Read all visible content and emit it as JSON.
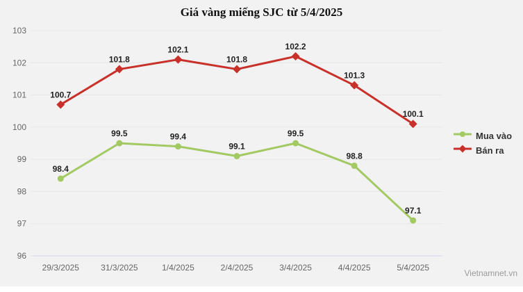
{
  "title": "Giá vàng miếng SJC từ 5/4/2025",
  "watermark": "Vietnamnet.vn",
  "chart_data": {
    "type": "line",
    "categories": [
      "29/3/2025",
      "31/3/2025",
      "1/4/2025",
      "2/4/2025",
      "3/4/2025",
      "4/4/2025",
      "5/4/2025"
    ],
    "series": [
      {
        "name": "Mua vào",
        "color": "#a3c962",
        "marker": "circle",
        "values": [
          98.4,
          99.5,
          99.4,
          99.1,
          99.5,
          98.8,
          97.1
        ]
      },
      {
        "name": "Bán ra",
        "color": "#c8302a",
        "marker": "diamond",
        "values": [
          100.7,
          101.8,
          102.1,
          101.8,
          102.2,
          101.3,
          100.1
        ]
      }
    ],
    "title": "Giá vàng miếng SJC từ 5/4/2025",
    "xlabel": "",
    "ylabel": "",
    "ylim": [
      96,
      103
    ],
    "yticks": [
      96,
      97,
      98,
      99,
      100,
      101,
      102,
      103
    ],
    "grid": true,
    "legend_position": "right",
    "colors": {
      "background": "#f2f2f2",
      "gridline": "#e6e6e6",
      "axis_line": "#ccd6eb",
      "tick_label": "#666666",
      "data_label": "#222222",
      "legend_text": "#333333"
    }
  }
}
